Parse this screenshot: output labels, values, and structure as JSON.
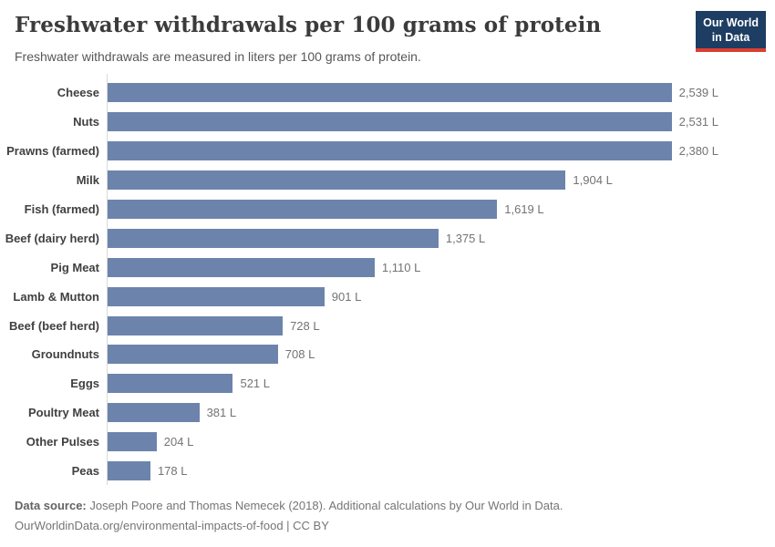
{
  "header": {
    "title": "Freshwater withdrawals per 100 grams of protein",
    "subtitle": "Freshwater withdrawals are measured in liters per 100 grams of protein.",
    "logo": {
      "line1": "Our World",
      "line2": "in Data"
    }
  },
  "chart_data": {
    "type": "bar",
    "orientation": "horizontal",
    "title": "Freshwater withdrawals per 100 grams of protein",
    "xlabel": "",
    "ylabel": "",
    "unit": "liters per 100 grams of protein",
    "xlim": [
      0,
      2539
    ],
    "grid": false,
    "legend": false,
    "bar_color": "#6c84ac",
    "categories": [
      "Cheese",
      "Nuts",
      "Prawns (farmed)",
      "Milk",
      "Fish (farmed)",
      "Beef (dairy herd)",
      "Pig Meat",
      "Lamb & Mutton",
      "Beef (beef herd)",
      "Groundnuts",
      "Eggs",
      "Poultry Meat",
      "Other Pulses",
      "Peas"
    ],
    "values": [
      2539,
      2531,
      2380,
      1904,
      1619,
      1375,
      1110,
      901,
      728,
      708,
      521,
      381,
      204,
      178
    ],
    "value_labels": [
      "2,539 L",
      "2,531 L",
      "2,380 L",
      "1,904 L",
      "1,619 L",
      "1,375 L",
      "1,110 L",
      "901 L",
      "728 L",
      "708 L",
      "521 L",
      "381 L",
      "204 L",
      "178 L"
    ]
  },
  "footer": {
    "source_label": "Data source:",
    "source_text": " Joseph Poore and Thomas Nemecek (2018). Additional calculations by Our World in Data.",
    "link_line": "OurWorldinData.org/environmental-impacts-of-food | CC BY"
  },
  "colors": {
    "bar": "#6c84ac",
    "logo_background": "#1d3d63",
    "logo_underline": "#dc3e32",
    "title_text": "#3b3b3b",
    "category_text": "#404040",
    "value_text": "#737373",
    "axis_line": "#d9d9d9"
  }
}
